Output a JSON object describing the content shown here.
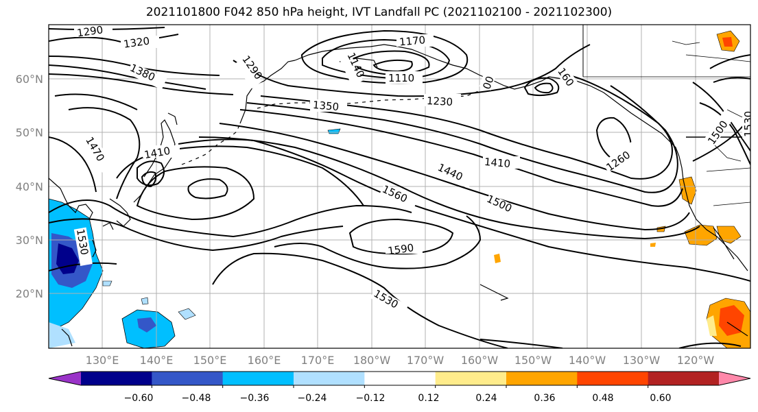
{
  "title": "2021101800 F042 850 hPa height, IVT Landfall PC (2021102100 - 2021102300)",
  "latitude_labels": [
    "60°N",
    "50°N",
    "40°N",
    "30°N",
    "20°N"
  ],
  "longitude_labels": [
    "130°E",
    "140°E",
    "150°E",
    "160°E",
    "170°E",
    "180°W",
    "170°W",
    "160°W",
    "150°W",
    "140°W",
    "130°W",
    "120°W"
  ],
  "contour_labels": [
    "1290",
    "1320",
    "1380",
    "1290",
    "1170",
    "1140",
    "1110",
    "1230",
    "1350",
    "00",
    "160",
    "1470",
    "1410",
    "1440",
    "1410",
    "1500",
    "1260",
    "1560",
    "1590",
    "1530",
    "1530",
    "1500",
    "1530",
    "1530"
  ],
  "colorbar": {
    "tick_labels": [
      "−0.60",
      "−0.48",
      "−0.36",
      "−0.24",
      "−0.12",
      "0.12",
      "0.24",
      "0.36",
      "0.48",
      "0.60"
    ],
    "colors": [
      "#9a33c8",
      "#00008b",
      "#3457c8",
      "#00bfff",
      "#b0e0ff",
      "#ffffff",
      "#ffec8b",
      "#ffa500",
      "#ff4500",
      "#b22222",
      "#ff88aa"
    ]
  },
  "colors": {
    "contour": "#000000",
    "grid": "#b0b0b0",
    "coast": "#000000",
    "axis_label": "#808080"
  }
}
